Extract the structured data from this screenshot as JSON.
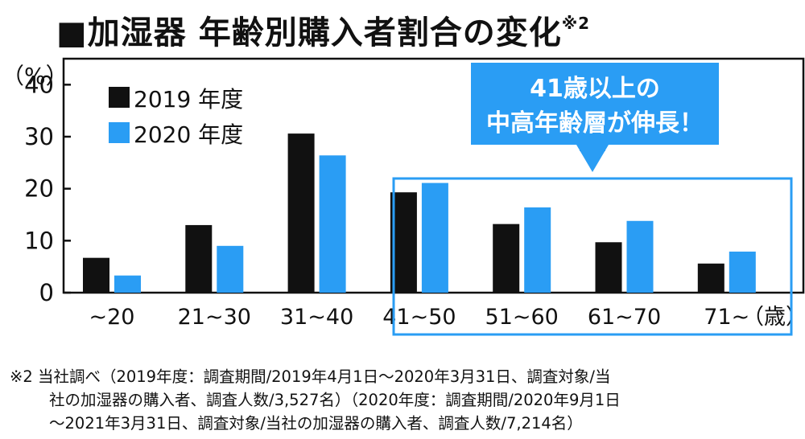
{
  "title": "■加湿器 年齢別購入者割合の変化",
  "title_note": "※2",
  "chart_data": {
    "type": "bar",
    "title": "■加湿器 年齢別購入者割合の変化",
    "ylabel": "（%）",
    "xlabel_unit": "（歳）",
    "categories": [
      "~20",
      "21~30",
      "31~40",
      "41~50",
      "51~60",
      "61~70",
      "71~"
    ],
    "y_ticks": [
      "0",
      "10",
      "20",
      "30",
      "40"
    ],
    "ylim": [
      0,
      45
    ],
    "series": [
      {
        "name": "2019 年度",
        "color": "#111111",
        "values": [
          6.7,
          13.0,
          30.6,
          19.3,
          13.2,
          9.7,
          5.6
        ]
      },
      {
        "name": "2020 年度",
        "color": "#2a9df4",
        "values": [
          3.3,
          9.0,
          26.4,
          21.1,
          16.4,
          13.8,
          7.9
        ]
      }
    ],
    "legend_position": "top-left",
    "grid": false,
    "annotation": {
      "lines": [
        "41歳以上の",
        "中高年齢層が伸長！"
      ],
      "highlight_categories": [
        "41~50",
        "51~60",
        "61~70",
        "71~"
      ],
      "color": "#2a9df4"
    }
  },
  "footnote": {
    "lines": [
      "※2 当社調べ（2019年度：調査期間/2019年4月1日～2020年3月31日、調査対象/当",
      "社の加湿器の購入者、調査人数/3,527名）（2020年度：調査期間/2020年9月1日",
      "～2021年3月31日、調査対象/当社の加湿器の購入者、調査人数/7,214名）"
    ]
  }
}
